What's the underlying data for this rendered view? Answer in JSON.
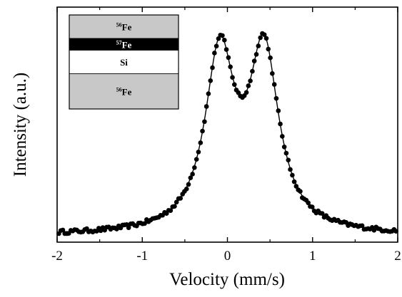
{
  "chart_data": {
    "type": "scatter",
    "title": "",
    "xlabel": "Velocity (mm/s)",
    "ylabel": "Intensity (a.u.)",
    "xlim": [
      -2,
      2
    ],
    "ylim": [
      0,
      1.05
    ],
    "x_ticks": [
      "-2",
      "-1",
      "0",
      "1",
      "2"
    ],
    "grid": false,
    "legend": "none",
    "colors": {
      "points": "#000000",
      "fit_line": "#000000",
      "layer_gray": "#c8c8c8",
      "layer_black": "#000000"
    },
    "fit_model": {
      "baseline": 0.03,
      "peaks": [
        {
          "center": -0.09,
          "hwhm": 0.21,
          "height": 0.78
        },
        {
          "center": 0.43,
          "hwhm": 0.21,
          "height": 0.79
        }
      ]
    },
    "series": [
      {
        "style": "points",
        "x": [],
        "y": []
      },
      {
        "style": "line",
        "x": [],
        "y": []
      }
    ],
    "inset": {
      "layers": [
        {
          "label_sup": "56",
          "label": "Fe",
          "fill": "#c8c8c8",
          "text_color": "#000000",
          "thickness": 2
        },
        {
          "label_sup": "57",
          "label": "Fe",
          "fill": "#000000",
          "text_color": "#ffffff",
          "thickness": 1
        },
        {
          "label_sup": "",
          "label": "Si",
          "fill": "#ffffff",
          "text_color": "#000000",
          "thickness": 2
        },
        {
          "label_sup": "56",
          "label": "Fe",
          "fill": "#c8c8c8",
          "text_color": "#000000",
          "thickness": 3
        }
      ]
    }
  }
}
